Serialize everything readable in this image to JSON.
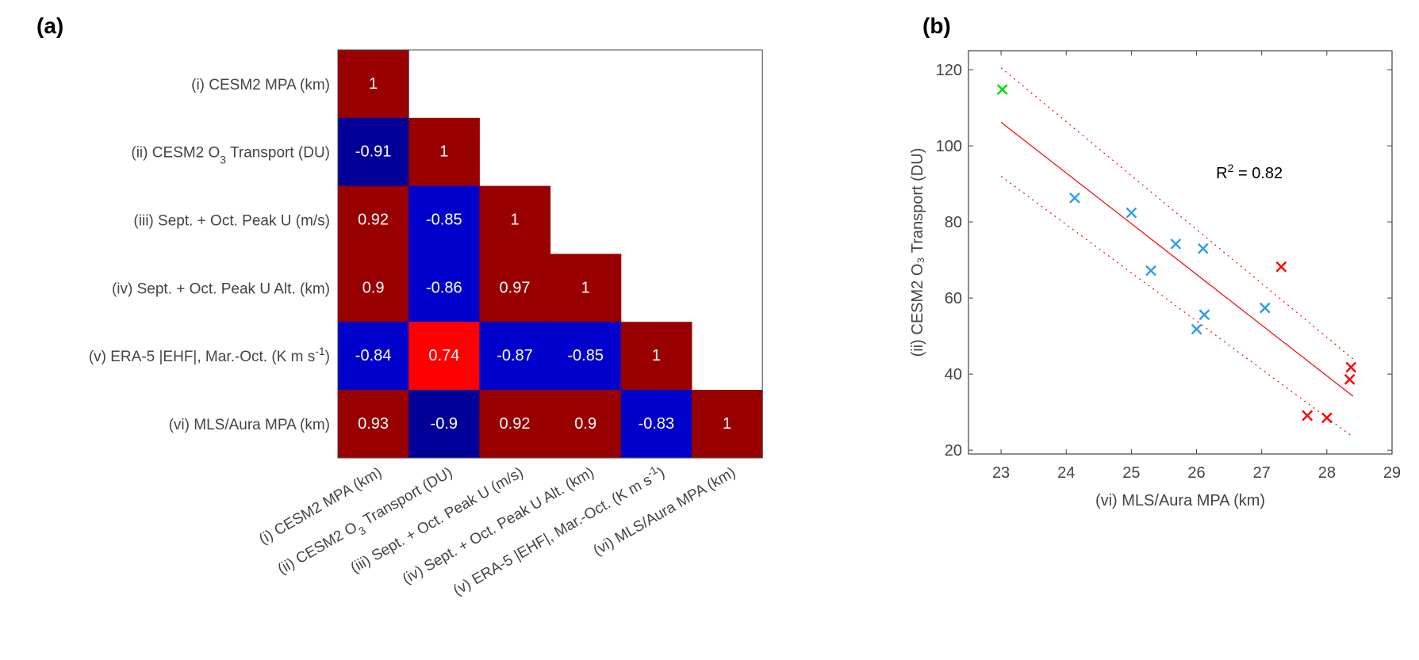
{
  "panel_a_label": "(a)",
  "panel_b_label": "(b)",
  "chart_data": [
    {
      "type": "heatmap",
      "title": "",
      "variables": [
        [
          {
            "t": "(i) CESM2 MPA (km)"
          }
        ],
        [
          {
            "t": "(ii) CESM2 O"
          },
          {
            "t": "3",
            "sub": true
          },
          {
            "t": " Transport (DU)"
          }
        ],
        [
          {
            "t": "(iii) Sept. + Oct. Peak U (m/s)"
          }
        ],
        [
          {
            "t": "(iv) Sept. + Oct. Peak U Alt. (km)"
          }
        ],
        [
          {
            "t": "(v) ERA-5 |EHF|, Mar.-Oct. (K m s"
          },
          {
            "t": "-1",
            "sup": true
          },
          {
            "t": ")"
          }
        ],
        [
          {
            "t": "(vi) MLS/Aura MPA (km)"
          }
        ]
      ],
      "matrix": [
        [
          "1"
        ],
        [
          "-0.91",
          "1"
        ],
        [
          "0.92",
          "-0.85",
          "1"
        ],
        [
          "0.9",
          "-0.86",
          "0.97",
          "1"
        ],
        [
          "-0.84",
          "0.74",
          "-0.87",
          "-0.85",
          "1"
        ],
        [
          "0.93",
          "-0.9",
          "0.92",
          "0.9",
          "-0.83",
          "1"
        ]
      ],
      "colormap": {
        "strong_pos": "#990000",
        "mid_pos": "#FF0000",
        "mid_neg": "#0000CC",
        "strong_neg": "#000099"
      }
    },
    {
      "type": "scatter",
      "xlabel": "(vi) MLS/Aura MPA (km)",
      "ylabel": "(ii) CESM2 O₃ Transport (DU)",
      "xlim": [
        22.5,
        29
      ],
      "ylim": [
        19,
        125
      ],
      "xticks": [
        "23",
        "24",
        "25",
        "26",
        "27",
        "28",
        "29"
      ],
      "yticks": [
        "20",
        "40",
        "60",
        "80",
        "100",
        "120"
      ],
      "annotation": {
        "base": "R",
        "sup": "2",
        "rest": " = 0.82"
      },
      "series": [
        {
          "name": "green",
          "color": "#00DD00",
          "points": [
            [
              23.02,
              114.8
            ]
          ]
        },
        {
          "name": "blue",
          "color": "#2E9BE8",
          "points": [
            [
              24.13,
              86.3
            ],
            [
              25.0,
              82.4
            ],
            [
              25.3,
              67.2
            ],
            [
              25.68,
              74.2
            ],
            [
              26.1,
              73.0
            ],
            [
              26.0,
              51.8
            ],
            [
              26.12,
              55.6
            ],
            [
              27.05,
              57.4
            ]
          ]
        },
        {
          "name": "red",
          "color": "#FF0000",
          "points": [
            [
              27.3,
              68.2
            ],
            [
              28.37,
              41.8
            ],
            [
              28.35,
              38.6
            ],
            [
              27.7,
              29.1
            ],
            [
              28.0,
              28.5
            ]
          ]
        }
      ],
      "fit_line": {
        "color": "#FF0000",
        "x": [
          23.0,
          28.4
        ],
        "y": [
          106.2,
          34.2
        ]
      },
      "upper_bound": {
        "x": [
          23.0,
          28.4
        ],
        "y": [
          120.5,
          44.0
        ]
      },
      "lower_bound": {
        "x": [
          23.0,
          28.4
        ],
        "y": [
          92.0,
          23.5
        ]
      }
    }
  ]
}
